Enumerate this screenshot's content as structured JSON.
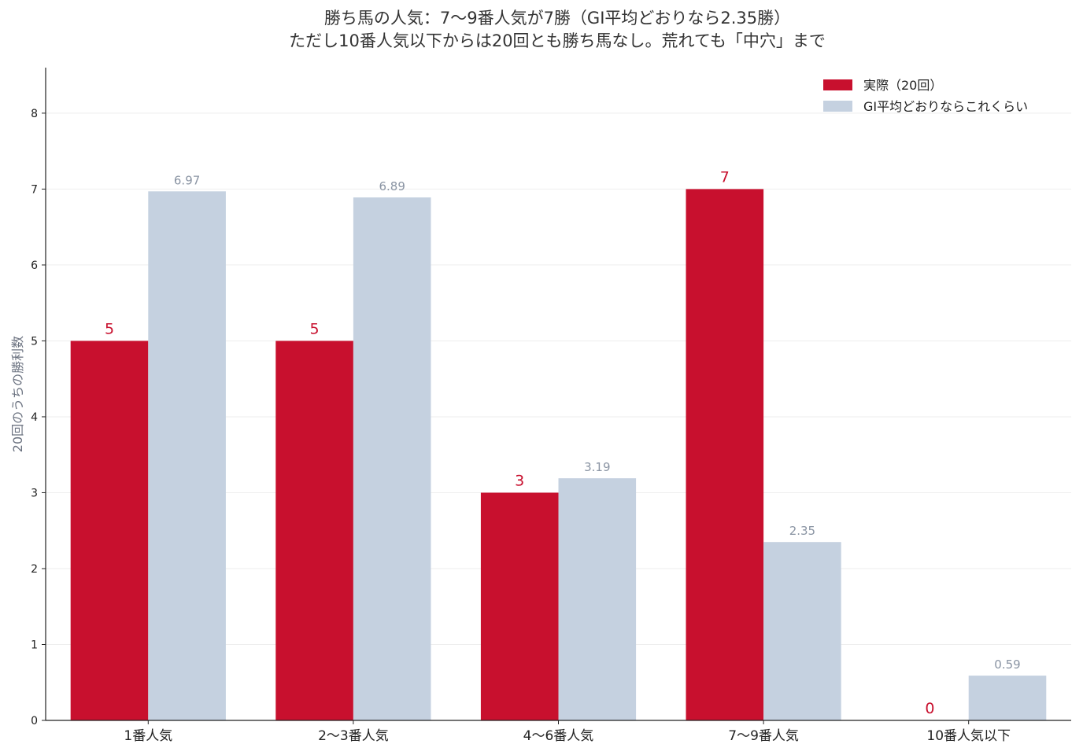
{
  "chart_data": {
    "type": "bar",
    "title": [
      "勝ち馬の人気：7〜9番人気が7勝（GⅠ平均どおりなら2.35勝）",
      "ただし10番人気以下からは20回とも勝ち馬なし。荒れても「中穴」まで"
    ],
    "ylabel": "20回のうちの勝利数",
    "xlabel": "",
    "categories": [
      "1番人気",
      "2〜3番人気",
      "4〜6番人気",
      "7〜9番人気",
      "10番人気以下"
    ],
    "series": [
      {
        "name": "実際（20回）",
        "values": [
          5,
          5,
          3,
          7,
          0
        ],
        "labels": [
          "5",
          "5",
          "3",
          "7",
          "0"
        ],
        "color": "#c8102e",
        "label_color": "#c8102e"
      },
      {
        "name": "GⅠ平均どおりならこれくらい",
        "values": [
          6.97,
          6.89,
          3.19,
          2.35,
          0.59
        ],
        "labels": [
          "6.97",
          "6.89",
          "3.19",
          "2.35",
          "0.59"
        ],
        "color": "#c5d1e0",
        "label_color": "#8a94a3"
      }
    ],
    "ylim": [
      0,
      8.6
    ],
    "yticks": [
      0,
      1,
      2,
      3,
      4,
      5,
      6,
      7,
      8
    ],
    "grid": "horizontal",
    "legend": "top-right"
  }
}
